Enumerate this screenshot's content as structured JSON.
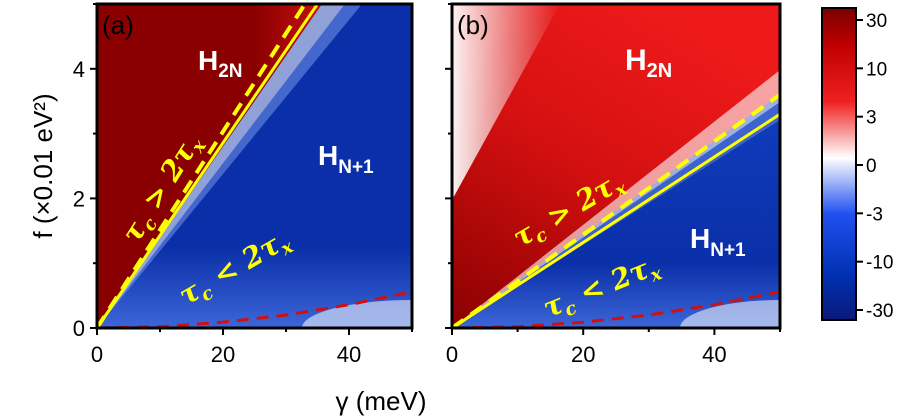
{
  "chart_data": {
    "type": "heatmap",
    "xlabel": "γ (meV)",
    "ylabel": "f (×0.01 eV²)",
    "xlim": [
      0,
      50
    ],
    "ylim": [
      0,
      5
    ],
    "x_ticks": [
      "0",
      "20",
      "40"
    ],
    "y_ticks": [
      "0",
      "2",
      "4"
    ],
    "colorbar": {
      "tick_labels": [
        "30",
        "10",
        "3",
        "0",
        "-3",
        "-10",
        "-30"
      ],
      "colors": {
        "high": "#7a0000",
        "mid": "#ffffff",
        "low": "#0a1a7a"
      }
    },
    "panels": [
      {
        "label": "(a)",
        "regions": {
          "upper": "H",
          "upper_sub": "2N",
          "lower": "H",
          "lower_sub": "N+1"
        },
        "condition_upper": {
          "main": "τ",
          "sub1": "c",
          "op": " > 2τ",
          "sub2": "x"
        },
        "condition_lower": {
          "main": "τ",
          "sub1": "c",
          "op": " < 2τ",
          "sub2": "x"
        },
        "boundary_solid": {
          "x": [
            0,
            35
          ],
          "y": [
            0,
            5
          ]
        },
        "boundary_dashed_yellow": {
          "x": [
            0,
            33
          ],
          "y": [
            0,
            5
          ]
        },
        "boundary_dashed_red": {
          "x": [
            0,
            10,
            20,
            30,
            40,
            50
          ],
          "y": [
            0,
            0.02,
            0.09,
            0.2,
            0.36,
            0.56
          ]
        }
      },
      {
        "label": "(b)",
        "regions": {
          "upper": "H",
          "upper_sub": "2N",
          "lower": "H",
          "lower_sub": "N+1"
        },
        "condition_upper": {
          "main": "τ",
          "sub1": "c",
          "op": " > 2τ",
          "sub2": "x"
        },
        "condition_lower": {
          "main": "τ",
          "sub1": "c",
          "op": " < 2τ",
          "sub2": "x"
        },
        "boundary_solid": {
          "x": [
            0,
            50
          ],
          "y": [
            0,
            3.3
          ]
        },
        "boundary_dashed_yellow": {
          "x": [
            0,
            50
          ],
          "y": [
            0,
            3.6
          ]
        },
        "boundary_dashed_red": {
          "x": [
            0,
            10,
            20,
            30,
            40,
            50
          ],
          "y": [
            0,
            0.02,
            0.09,
            0.2,
            0.36,
            0.56
          ]
        }
      }
    ]
  }
}
